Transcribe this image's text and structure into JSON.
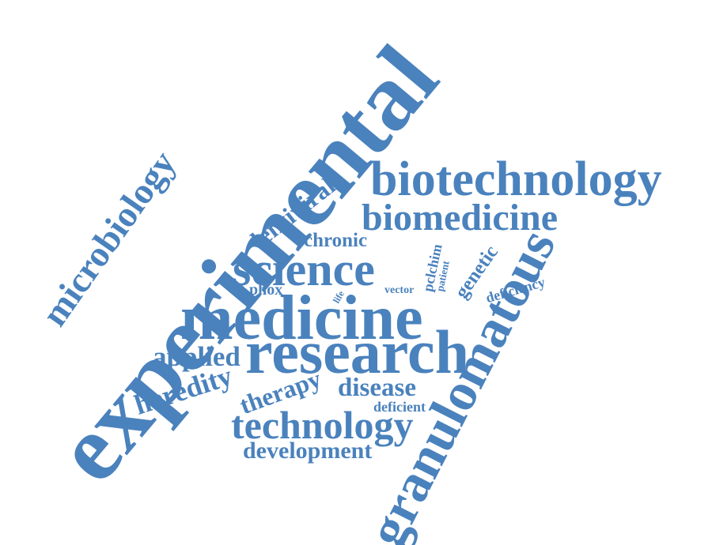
{
  "word_cloud": {
    "color": "#4a82bd",
    "words": {
      "experimental": "experimental",
      "granulomatous": "granulomatous",
      "biotechnology": "biotechnology",
      "medicine": "medicine",
      "research": "research",
      "microbiology": "microbiology",
      "science": "science",
      "biomedicine": "biomedicine",
      "technology": "technology",
      "lentiviral": "lentiviral",
      "heredity": "heredity",
      "applied": "applied",
      "disease": "disease",
      "therapy": "therapy",
      "development": "development",
      "chronic": "chronic",
      "genetic": "genetic",
      "deficiency": "deficiency",
      "phox": "phox",
      "deficient": "deficient",
      "pclchim": "pclchim",
      "patient": "patient",
      "vector": "vector",
      "life": "life"
    }
  }
}
